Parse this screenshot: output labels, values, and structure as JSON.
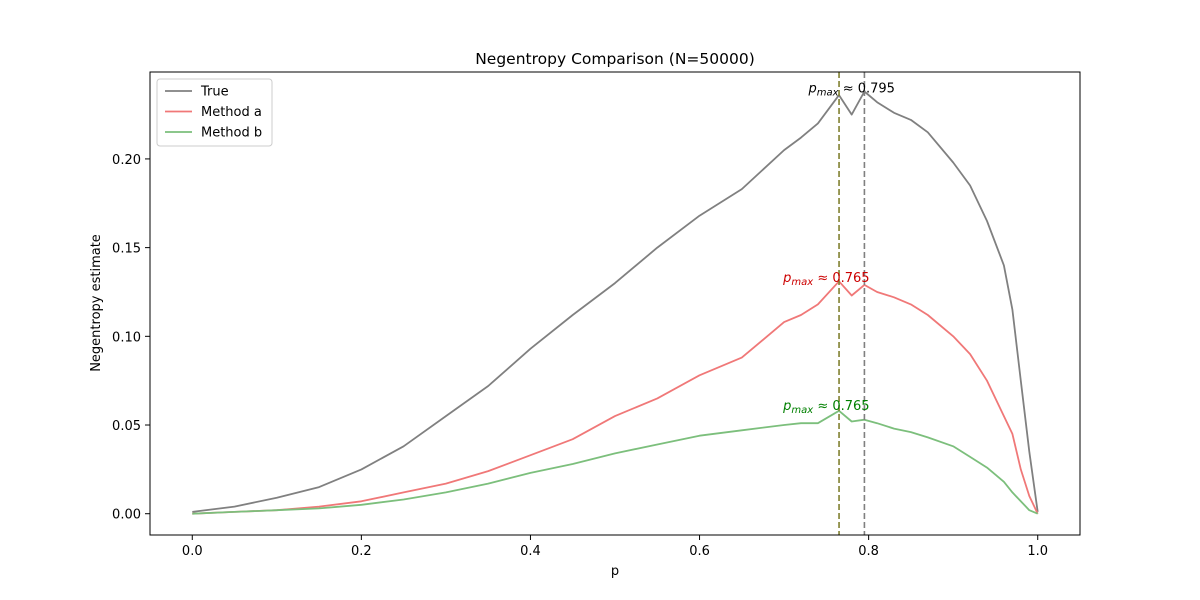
{
  "chart_data": {
    "type": "line",
    "title": "Negentropy Comparison (N=50000)",
    "xlabel": "p",
    "ylabel": "Negentropy estimate",
    "xlim": [
      -0.05,
      1.05
    ],
    "ylim": [
      -0.012,
      0.249
    ],
    "xticks": [
      0.0,
      0.2,
      0.4,
      0.6,
      0.8,
      1.0
    ],
    "xtick_labels": [
      "0.0",
      "0.2",
      "0.4",
      "0.6",
      "0.8",
      "1.0"
    ],
    "yticks": [
      0.0,
      0.05,
      0.1,
      0.15,
      0.2
    ],
    "ytick_labels": [
      "0.00",
      "0.05",
      "0.10",
      "0.15",
      "0.20"
    ],
    "grid": false,
    "legend_position": "upper-left",
    "x": [
      0.0,
      0.05,
      0.1,
      0.15,
      0.2,
      0.25,
      0.3,
      0.35,
      0.4,
      0.45,
      0.5,
      0.55,
      0.6,
      0.65,
      0.7,
      0.72,
      0.74,
      0.765,
      0.78,
      0.795,
      0.81,
      0.83,
      0.85,
      0.87,
      0.9,
      0.92,
      0.94,
      0.96,
      0.97,
      0.98,
      0.99,
      1.0
    ],
    "series": [
      {
        "name": "True",
        "color": "#808080",
        "values": [
          0.001,
          0.004,
          0.009,
          0.015,
          0.025,
          0.038,
          0.055,
          0.072,
          0.093,
          0.112,
          0.13,
          0.15,
          0.168,
          0.183,
          0.205,
          0.212,
          0.22,
          0.236,
          0.225,
          0.238,
          0.232,
          0.226,
          0.222,
          0.215,
          0.198,
          0.185,
          0.165,
          0.14,
          0.115,
          0.075,
          0.035,
          0.001
        ]
      },
      {
        "name": "Method a",
        "color": "#f07878",
        "values": [
          0.0,
          0.001,
          0.002,
          0.004,
          0.007,
          0.012,
          0.017,
          0.024,
          0.033,
          0.042,
          0.055,
          0.065,
          0.078,
          0.088,
          0.108,
          0.112,
          0.118,
          0.131,
          0.123,
          0.129,
          0.125,
          0.122,
          0.118,
          0.112,
          0.1,
          0.09,
          0.075,
          0.055,
          0.045,
          0.025,
          0.01,
          0.0
        ]
      },
      {
        "name": "Method b",
        "color": "#7cbf7c",
        "values": [
          0.0,
          0.001,
          0.002,
          0.003,
          0.005,
          0.008,
          0.012,
          0.017,
          0.023,
          0.028,
          0.034,
          0.039,
          0.044,
          0.047,
          0.05,
          0.051,
          0.051,
          0.058,
          0.052,
          0.053,
          0.051,
          0.048,
          0.046,
          0.043,
          0.038,
          0.032,
          0.026,
          0.018,
          0.012,
          0.007,
          0.002,
          0.0
        ]
      }
    ],
    "vlines": [
      {
        "x": 0.765,
        "color": "#808030",
        "dash": true
      },
      {
        "x": 0.795,
        "color": "#808080",
        "dash": true
      }
    ],
    "annotations": [
      {
        "prefix": "p",
        "sub": "max",
        "text": " ≈ 0.795",
        "color": "#000000",
        "x": 0.78,
        "y": 0.2375
      },
      {
        "prefix": "p",
        "sub": "max",
        "text": " ≈ 0.765",
        "color": "#cc0000",
        "x": 0.75,
        "y": 0.1305
      },
      {
        "prefix": "p",
        "sub": "max",
        "text": " ≈ 0.765",
        "color": "#008000",
        "x": 0.75,
        "y": 0.0585
      }
    ]
  }
}
